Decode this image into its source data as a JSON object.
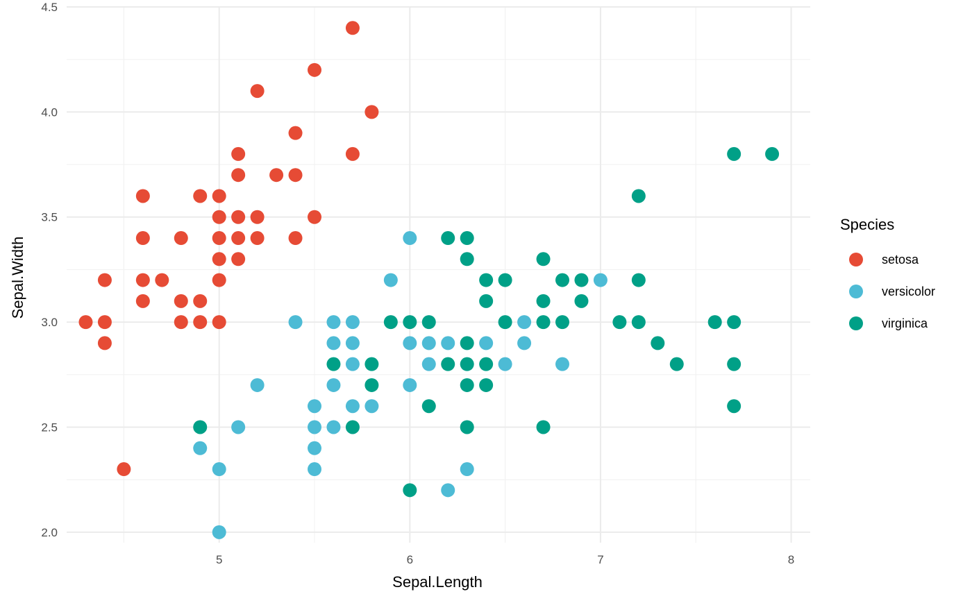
{
  "chart_data": {
    "type": "scatter",
    "title": "",
    "xlabel": "Sepal.Length",
    "ylabel": "Sepal.Width",
    "xlim": [
      4.2,
      8.1
    ],
    "ylim": [
      1.95,
      4.5
    ],
    "x_ticks": [
      5,
      6,
      7,
      8
    ],
    "x_tick_labels": [
      "5",
      "6",
      "7",
      "8"
    ],
    "y_ticks": [
      2.0,
      2.5,
      3.0,
      3.5,
      4.0,
      4.5
    ],
    "y_tick_labels": [
      "2.0",
      "2.5",
      "3.0",
      "3.5",
      "4.0",
      "4.5"
    ],
    "grid": true,
    "legend": {
      "title": "Species",
      "position": "right"
    },
    "series": [
      {
        "name": "setosa",
        "color": "#E64B35",
        "points": [
          [
            5.7,
            4.4
          ],
          [
            5.5,
            4.2
          ],
          [
            5.2,
            4.1
          ],
          [
            5.8,
            4.0
          ],
          [
            5.4,
            3.9
          ],
          [
            5.1,
            3.8
          ],
          [
            5.7,
            3.8
          ],
          [
            5.1,
            3.7
          ],
          [
            5.3,
            3.7
          ],
          [
            5.4,
            3.7
          ],
          [
            4.6,
            3.6
          ],
          [
            4.9,
            3.6
          ],
          [
            5.0,
            3.6
          ],
          [
            5.0,
            3.5
          ],
          [
            5.1,
            3.5
          ],
          [
            5.2,
            3.5
          ],
          [
            5.5,
            3.5
          ],
          [
            4.6,
            3.4
          ],
          [
            4.8,
            3.4
          ],
          [
            5.0,
            3.4
          ],
          [
            5.1,
            3.4
          ],
          [
            5.2,
            3.4
          ],
          [
            5.4,
            3.4
          ],
          [
            5.0,
            3.3
          ],
          [
            5.1,
            3.3
          ],
          [
            4.4,
            3.2
          ],
          [
            4.6,
            3.2
          ],
          [
            4.7,
            3.2
          ],
          [
            5.0,
            3.2
          ],
          [
            4.6,
            3.1
          ],
          [
            4.8,
            3.1
          ],
          [
            4.9,
            3.1
          ],
          [
            4.3,
            3.0
          ],
          [
            4.4,
            3.0
          ],
          [
            4.8,
            3.0
          ],
          [
            4.9,
            3.0
          ],
          [
            5.0,
            3.0
          ],
          [
            4.4,
            2.9
          ],
          [
            4.5,
            2.3
          ]
        ]
      },
      {
        "name": "versicolor",
        "color": "#4DBBD5",
        "points": [
          [
            6.0,
            3.4
          ],
          [
            5.9,
            3.2
          ],
          [
            7.0,
            3.2
          ],
          [
            5.4,
            3.0
          ],
          [
            5.6,
            3.0
          ],
          [
            5.7,
            3.0
          ],
          [
            6.6,
            3.0
          ],
          [
            5.6,
            2.9
          ],
          [
            5.7,
            2.9
          ],
          [
            6.0,
            2.9
          ],
          [
            6.1,
            2.9
          ],
          [
            6.2,
            2.9
          ],
          [
            6.4,
            2.9
          ],
          [
            6.6,
            2.9
          ],
          [
            5.7,
            2.8
          ],
          [
            6.1,
            2.8
          ],
          [
            6.5,
            2.8
          ],
          [
            6.8,
            2.8
          ],
          [
            5.2,
            2.7
          ],
          [
            5.6,
            2.7
          ],
          [
            6.0,
            2.7
          ],
          [
            5.5,
            2.6
          ],
          [
            5.7,
            2.6
          ],
          [
            5.8,
            2.6
          ],
          [
            5.1,
            2.5
          ],
          [
            5.5,
            2.5
          ],
          [
            5.6,
            2.5
          ],
          [
            4.9,
            2.4
          ],
          [
            5.5,
            2.4
          ],
          [
            5.0,
            2.3
          ],
          [
            5.5,
            2.3
          ],
          [
            6.3,
            2.3
          ],
          [
            6.2,
            2.2
          ],
          [
            5.0,
            2.0
          ]
        ]
      },
      {
        "name": "virginica",
        "color": "#00A087",
        "points": [
          [
            7.7,
            3.8
          ],
          [
            7.9,
            3.8
          ],
          [
            7.2,
            3.6
          ],
          [
            6.2,
            3.4
          ],
          [
            6.3,
            3.4
          ],
          [
            6.3,
            3.3
          ],
          [
            6.7,
            3.3
          ],
          [
            6.4,
            3.2
          ],
          [
            6.5,
            3.2
          ],
          [
            6.8,
            3.2
          ],
          [
            6.9,
            3.2
          ],
          [
            7.2,
            3.2
          ],
          [
            6.4,
            3.1
          ],
          [
            6.7,
            3.1
          ],
          [
            6.9,
            3.1
          ],
          [
            5.9,
            3.0
          ],
          [
            6.0,
            3.0
          ],
          [
            6.1,
            3.0
          ],
          [
            6.5,
            3.0
          ],
          [
            6.7,
            3.0
          ],
          [
            6.8,
            3.0
          ],
          [
            7.1,
            3.0
          ],
          [
            7.2,
            3.0
          ],
          [
            7.6,
            3.0
          ],
          [
            7.7,
            3.0
          ],
          [
            6.3,
            2.9
          ],
          [
            7.3,
            2.9
          ],
          [
            5.6,
            2.8
          ],
          [
            5.8,
            2.8
          ],
          [
            6.2,
            2.8
          ],
          [
            6.3,
            2.8
          ],
          [
            6.4,
            2.8
          ],
          [
            7.4,
            2.8
          ],
          [
            7.7,
            2.8
          ],
          [
            5.8,
            2.7
          ],
          [
            6.3,
            2.7
          ],
          [
            6.4,
            2.7
          ],
          [
            6.1,
            2.6
          ],
          [
            7.7,
            2.6
          ],
          [
            4.9,
            2.5
          ],
          [
            5.7,
            2.5
          ],
          [
            6.3,
            2.5
          ],
          [
            6.7,
            2.5
          ],
          [
            6.0,
            2.2
          ]
        ]
      }
    ]
  }
}
